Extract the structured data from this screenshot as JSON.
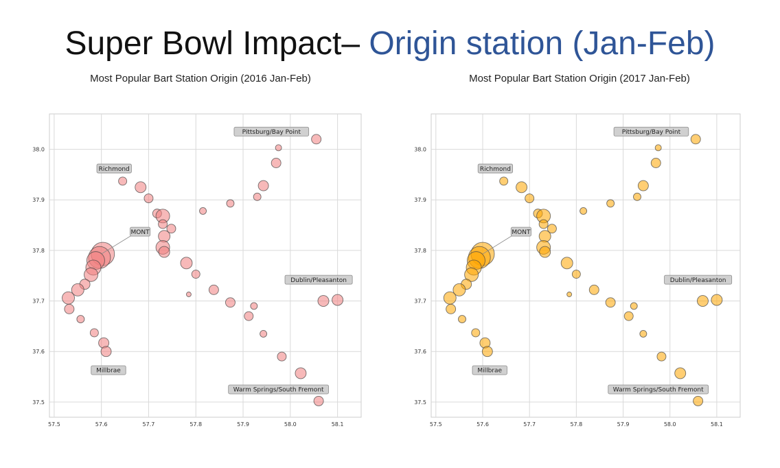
{
  "slide": {
    "title_part1": "Super Bowl Impact– ",
    "title_part2": "Origin station (Jan-Feb)"
  },
  "chart_data": [
    {
      "type": "scatter",
      "title": "Most Popular Bart Station Origin (2016 Jan-Feb)",
      "color": "#f08080",
      "xlim": [
        57.49,
        58.15
      ],
      "ylim": [
        37.47,
        38.07
      ],
      "xticks": [
        "57.5",
        "57.6",
        "57.7",
        "57.8",
        "57.9",
        "58.0",
        "58.1"
      ],
      "yticks": [
        "37.5",
        "37.6",
        "37.7",
        "37.8",
        "37.9",
        "38.0"
      ],
      "grid": true,
      "points": [
        {
          "x": 58.055,
          "y": 38.02,
          "s": 7
        },
        {
          "x": 57.975,
          "y": 38.003,
          "s": 4.5
        },
        {
          "x": 57.97,
          "y": 37.973,
          "s": 7
        },
        {
          "x": 57.943,
          "y": 37.928,
          "s": 7.5
        },
        {
          "x": 57.93,
          "y": 37.906,
          "s": 5.5
        },
        {
          "x": 57.873,
          "y": 37.893,
          "s": 5.5
        },
        {
          "x": 57.815,
          "y": 37.878,
          "s": 5
        },
        {
          "x": 57.645,
          "y": 37.937,
          "s": 6
        },
        {
          "x": 57.683,
          "y": 37.925,
          "s": 8
        },
        {
          "x": 57.7,
          "y": 37.903,
          "s": 6.5
        },
        {
          "x": 57.718,
          "y": 37.873,
          "s": 6.5
        },
        {
          "x": 57.73,
          "y": 37.868,
          "s": 10
        },
        {
          "x": 57.73,
          "y": 37.852,
          "s": 6.5
        },
        {
          "x": 57.748,
          "y": 37.843,
          "s": 6.5
        },
        {
          "x": 57.733,
          "y": 37.828,
          "s": 8.5
        },
        {
          "x": 57.73,
          "y": 37.806,
          "s": 10
        },
        {
          "x": 57.733,
          "y": 37.797,
          "s": 8
        },
        {
          "x": 57.603,
          "y": 37.793,
          "s": 17
        },
        {
          "x": 57.596,
          "y": 37.786,
          "s": 16
        },
        {
          "x": 57.588,
          "y": 37.78,
          "s": 13
        },
        {
          "x": 57.583,
          "y": 37.766,
          "s": 11
        },
        {
          "x": 57.578,
          "y": 37.752,
          "s": 10
        },
        {
          "x": 57.78,
          "y": 37.775,
          "s": 8.5
        },
        {
          "x": 57.8,
          "y": 37.753,
          "s": 6
        },
        {
          "x": 57.565,
          "y": 37.733,
          "s": 7.5
        },
        {
          "x": 57.55,
          "y": 37.722,
          "s": 9
        },
        {
          "x": 57.53,
          "y": 37.706,
          "s": 9
        },
        {
          "x": 57.532,
          "y": 37.684,
          "s": 7
        },
        {
          "x": 57.556,
          "y": 37.664,
          "s": 5.5
        },
        {
          "x": 57.785,
          "y": 37.713,
          "s": 3.5
        },
        {
          "x": 57.838,
          "y": 37.722,
          "s": 7
        },
        {
          "x": 57.873,
          "y": 37.697,
          "s": 7
        },
        {
          "x": 57.923,
          "y": 37.69,
          "s": 5
        },
        {
          "x": 57.912,
          "y": 37.67,
          "s": 6.5
        },
        {
          "x": 58.07,
          "y": 37.7,
          "s": 8
        },
        {
          "x": 58.1,
          "y": 37.702,
          "s": 8
        },
        {
          "x": 57.585,
          "y": 37.637,
          "s": 6
        },
        {
          "x": 57.605,
          "y": 37.617,
          "s": 7.5
        },
        {
          "x": 57.61,
          "y": 37.6,
          "s": 7.5
        },
        {
          "x": 57.943,
          "y": 37.635,
          "s": 5
        },
        {
          "x": 57.982,
          "y": 37.59,
          "s": 6.5
        },
        {
          "x": 58.022,
          "y": 37.557,
          "s": 8
        },
        {
          "x": 58.06,
          "y": 37.502,
          "s": 7
        }
      ],
      "annotations": [
        {
          "text": "Pittsburg/Bay Point",
          "x": 57.96,
          "y": 38.035
        },
        {
          "text": "Richmond",
          "x": 57.627,
          "y": 37.962
        },
        {
          "text": "MONT",
          "x": 57.682,
          "y": 37.837,
          "arrow_x": 57.6,
          "arrow_y": 37.793
        },
        {
          "text": "Dublin/Pleasanton",
          "x": 58.06,
          "y": 37.742
        },
        {
          "text": "Millbrae",
          "x": 57.615,
          "y": 37.563
        },
        {
          "text": "Warm Springs/South Fremont",
          "x": 57.975,
          "y": 37.525
        }
      ]
    },
    {
      "type": "scatter",
      "title": "Most Popular Bart Station Origin (2017 Jan-Feb)",
      "color": "#ffa500",
      "xlim": [
        57.49,
        58.15
      ],
      "ylim": [
        37.47,
        38.07
      ],
      "xticks": [
        "57.5",
        "57.6",
        "57.7",
        "57.8",
        "57.9",
        "58.0",
        "58.1"
      ],
      "yticks": [
        "37.5",
        "37.6",
        "37.7",
        "37.8",
        "37.9",
        "38.0"
      ],
      "grid": true,
      "points": [
        {
          "x": 58.055,
          "y": 38.02,
          "s": 7
        },
        {
          "x": 57.975,
          "y": 38.003,
          "s": 4.5
        },
        {
          "x": 57.97,
          "y": 37.973,
          "s": 7
        },
        {
          "x": 57.943,
          "y": 37.928,
          "s": 7.5
        },
        {
          "x": 57.93,
          "y": 37.906,
          "s": 5.5
        },
        {
          "x": 57.873,
          "y": 37.893,
          "s": 5.5
        },
        {
          "x": 57.815,
          "y": 37.878,
          "s": 5
        },
        {
          "x": 57.645,
          "y": 37.937,
          "s": 6
        },
        {
          "x": 57.683,
          "y": 37.925,
          "s": 8
        },
        {
          "x": 57.7,
          "y": 37.903,
          "s": 6.5
        },
        {
          "x": 57.718,
          "y": 37.873,
          "s": 6.5
        },
        {
          "x": 57.73,
          "y": 37.868,
          "s": 10
        },
        {
          "x": 57.73,
          "y": 37.852,
          "s": 6.5
        },
        {
          "x": 57.748,
          "y": 37.843,
          "s": 6.5
        },
        {
          "x": 57.733,
          "y": 37.828,
          "s": 8.5
        },
        {
          "x": 57.73,
          "y": 37.806,
          "s": 10
        },
        {
          "x": 57.733,
          "y": 37.797,
          "s": 8
        },
        {
          "x": 57.6,
          "y": 37.793,
          "s": 17
        },
        {
          "x": 57.593,
          "y": 37.786,
          "s": 16
        },
        {
          "x": 57.586,
          "y": 37.78,
          "s": 13
        },
        {
          "x": 57.581,
          "y": 37.766,
          "s": 11
        },
        {
          "x": 57.576,
          "y": 37.752,
          "s": 10
        },
        {
          "x": 57.78,
          "y": 37.775,
          "s": 8.5
        },
        {
          "x": 57.8,
          "y": 37.753,
          "s": 6
        },
        {
          "x": 57.565,
          "y": 37.733,
          "s": 7.5
        },
        {
          "x": 57.55,
          "y": 37.722,
          "s": 9
        },
        {
          "x": 57.53,
          "y": 37.706,
          "s": 9
        },
        {
          "x": 57.532,
          "y": 37.684,
          "s": 7
        },
        {
          "x": 57.556,
          "y": 37.664,
          "s": 5.5
        },
        {
          "x": 57.785,
          "y": 37.713,
          "s": 3.5
        },
        {
          "x": 57.838,
          "y": 37.722,
          "s": 7
        },
        {
          "x": 57.873,
          "y": 37.697,
          "s": 7
        },
        {
          "x": 57.923,
          "y": 37.69,
          "s": 5
        },
        {
          "x": 57.912,
          "y": 37.67,
          "s": 6.5
        },
        {
          "x": 58.07,
          "y": 37.7,
          "s": 8
        },
        {
          "x": 58.1,
          "y": 37.702,
          "s": 8
        },
        {
          "x": 57.585,
          "y": 37.637,
          "s": 6
        },
        {
          "x": 57.605,
          "y": 37.617,
          "s": 7.5
        },
        {
          "x": 57.61,
          "y": 37.6,
          "s": 7.5
        },
        {
          "x": 57.943,
          "y": 37.635,
          "s": 5
        },
        {
          "x": 57.982,
          "y": 37.59,
          "s": 6.5
        },
        {
          "x": 58.022,
          "y": 37.557,
          "s": 8
        },
        {
          "x": 58.06,
          "y": 37.502,
          "s": 7
        }
      ],
      "annotations": [
        {
          "text": "Pittsburg/Bay Point",
          "x": 57.96,
          "y": 38.035
        },
        {
          "text": "Richmond",
          "x": 57.627,
          "y": 37.962
        },
        {
          "text": "MONT",
          "x": 57.682,
          "y": 37.837,
          "arrow_x": 57.6,
          "arrow_y": 37.793
        },
        {
          "text": "Dublin/Pleasanton",
          "x": 58.06,
          "y": 37.742
        },
        {
          "text": "Millbrae",
          "x": 57.615,
          "y": 37.563
        },
        {
          "text": "Warm Springs/South Fremont",
          "x": 57.975,
          "y": 37.525
        }
      ]
    }
  ]
}
